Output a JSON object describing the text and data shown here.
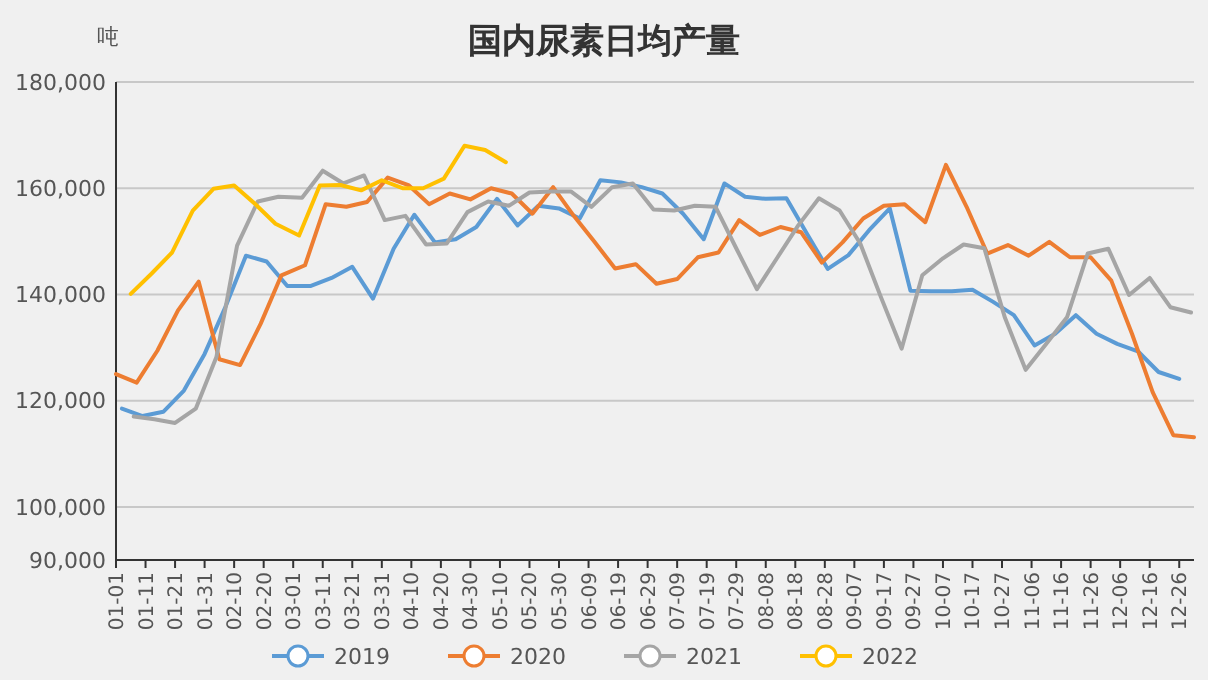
{
  "chart_data": {
    "type": "line",
    "title": "国内尿素日均产量",
    "ylabel": "吨",
    "ylim": [
      90000,
      180000
    ],
    "yticks": [
      {
        "value": 90000,
        "label": "90,000"
      },
      {
        "value": 100000,
        "label": "100,000"
      },
      {
        "value": 120000,
        "label": "120,000"
      },
      {
        "value": 140000,
        "label": "140,000"
      },
      {
        "value": 160000,
        "label": "160,000"
      },
      {
        "value": 180000,
        "label": "180,000"
      }
    ],
    "grid": "y",
    "legend": "bottom",
    "xlim": [
      "--01-01",
      "--12-31"
    ],
    "xticks": [
      {
        "value": "--01-01",
        "label": "01-01"
      },
      {
        "value": "--01-11",
        "label": "01-11"
      },
      {
        "value": "--01-21",
        "label": "01-21"
      },
      {
        "value": "--01-31",
        "label": "01-31"
      },
      {
        "value": "--02-10",
        "label": "02-10"
      },
      {
        "value": "--02-20",
        "label": "02-20"
      },
      {
        "value": "--03-01",
        "label": "03-01"
      },
      {
        "value": "--03-11",
        "label": "03-11"
      },
      {
        "value": "--03-21",
        "label": "03-21"
      },
      {
        "value": "--03-31",
        "label": "03-31"
      },
      {
        "value": "--04-10",
        "label": "04-10"
      },
      {
        "value": "--04-20",
        "label": "04-20"
      },
      {
        "value": "--04-30",
        "label": "04-30"
      },
      {
        "value": "--05-10",
        "label": "05-10"
      },
      {
        "value": "--05-20",
        "label": "05-20"
      },
      {
        "value": "--05-30",
        "label": "05-30"
      },
      {
        "value": "--06-09",
        "label": "06-09"
      },
      {
        "value": "--06-19",
        "label": "06-19"
      },
      {
        "value": "--06-29",
        "label": "06-29"
      },
      {
        "value": "--07-09",
        "label": "07-09"
      },
      {
        "value": "--07-19",
        "label": "07-19"
      },
      {
        "value": "--07-29",
        "label": "07-29"
      },
      {
        "value": "--08-08",
        "label": "08-08"
      },
      {
        "value": "--08-18",
        "label": "08-18"
      },
      {
        "value": "--08-28",
        "label": "08-28"
      },
      {
        "value": "--09-07",
        "label": "09-07"
      },
      {
        "value": "--09-17",
        "label": "09-17"
      },
      {
        "value": "--09-27",
        "label": "09-27"
      },
      {
        "value": "--10-07",
        "label": "10-07"
      },
      {
        "value": "--10-17",
        "label": "10-17"
      },
      {
        "value": "--10-27",
        "label": "10-27"
      },
      {
        "value": "--11-06",
        "label": "11-06"
      },
      {
        "value": "--11-16",
        "label": "11-16"
      },
      {
        "value": "--11-26",
        "label": "11-26"
      },
      {
        "value": "--12-06",
        "label": "12-06"
      },
      {
        "value": "--12-16",
        "label": "12-16"
      },
      {
        "value": "--12-26",
        "label": "12-26"
      }
    ],
    "series": [
      {
        "name": "2019",
        "color": "#5b9bd5",
        "x": [
          "--01-03",
          "--01-10",
          "--01-17",
          "--01-24",
          "--01-31",
          "--02-07",
          "--02-14",
          "--02-21",
          "--02-28",
          "--03-07",
          "--03-14",
          "--03-21",
          "--03-28",
          "--04-04",
          "--04-11",
          "--04-18",
          "--04-25",
          "--05-02",
          "--05-09",
          "--05-16",
          "--05-23",
          "--05-30",
          "--06-06",
          "--06-13",
          "--06-20",
          "--06-27",
          "--07-04",
          "--07-11",
          "--07-18",
          "--07-25",
          "--08-01",
          "--08-08",
          "--08-15",
          "--08-22",
          "--08-29",
          "--09-05",
          "--09-12",
          "--09-19",
          "--09-26",
          "--10-03",
          "--10-10",
          "--10-17",
          "--10-24",
          "--10-31",
          "--11-07",
          "--11-14",
          "--11-21",
          "--11-28",
          "--12-05",
          "--12-12",
          "--12-19",
          "--12-26"
        ],
        "values": [
          118500,
          117100,
          117900,
          121900,
          128800,
          137600,
          147300,
          146200,
          141600,
          141600,
          143100,
          145200,
          139200,
          148600,
          155000,
          149800,
          150400,
          152700,
          158000,
          153000,
          156700,
          156200,
          154300,
          161500,
          161100,
          160200,
          159000,
          155200,
          150400,
          160900,
          158400,
          158000,
          158100,
          151400,
          144800,
          147400,
          152100,
          156200,
          140700,
          140600,
          140600,
          140900,
          138600,
          136100,
          130400,
          132600,
          136100,
          132600,
          130700,
          129300,
          125400,
          124100
        ]
      },
      {
        "name": "2020",
        "color": "#ed7d31",
        "x": [
          "--01-01",
          "--01-08",
          "--01-15",
          "--01-22",
          "--01-29",
          "--02-05",
          "--02-12",
          "--02-19",
          "--02-26",
          "--03-05",
          "--03-12",
          "--03-19",
          "--03-26",
          "--04-02",
          "--04-09",
          "--04-16",
          "--04-23",
          "--04-30",
          "--05-07",
          "--05-14",
          "--05-21",
          "--05-28",
          "--06-04",
          "--06-11",
          "--06-18",
          "--06-25",
          "--07-02",
          "--07-09",
          "--07-16",
          "--07-23",
          "--07-30",
          "--08-06",
          "--08-13",
          "--08-20",
          "--08-27",
          "--09-03",
          "--09-10",
          "--09-17",
          "--09-24",
          "--10-01",
          "--10-08",
          "--10-15",
          "--10-22",
          "--10-29",
          "--11-05",
          "--11-12",
          "--11-19",
          "--11-26",
          "--12-03",
          "--12-10",
          "--12-17",
          "--12-24",
          "--12-31"
        ],
        "values": [
          125000,
          123400,
          129400,
          137000,
          142400,
          127800,
          126700,
          134500,
          143600,
          145500,
          157000,
          156500,
          157400,
          162000,
          160600,
          157000,
          159000,
          157900,
          160000,
          159000,
          155200,
          160200,
          154800,
          149900,
          144900,
          145700,
          142000,
          142900,
          147000,
          147900,
          154000,
          151200,
          152700,
          151700,
          146000,
          149800,
          154300,
          156700,
          157000,
          153600,
          164400,
          156500,
          147700,
          149300,
          147300,
          149900,
          147000,
          147000,
          142600,
          132600,
          121600,
          113500,
          113100
        ]
      },
      {
        "name": "2021",
        "color": "#a5a5a5",
        "x": [
          "--01-07",
          "--01-14",
          "--01-21",
          "--01-28",
          "--02-04",
          "--02-11",
          "--02-18",
          "--02-25",
          "--03-04",
          "--03-11",
          "--03-18",
          "--03-25",
          "--04-01",
          "--04-08",
          "--04-15",
          "--04-22",
          "--04-29",
          "--05-06",
          "--05-13",
          "--05-20",
          "--05-27",
          "--06-03",
          "--06-10",
          "--06-17",
          "--06-24",
          "--07-01",
          "--07-08",
          "--07-15",
          "--07-22",
          "--07-29",
          "--08-05",
          "--08-12",
          "--08-19",
          "--08-26",
          "--09-02",
          "--09-09",
          "--09-16",
          "--09-23",
          "--09-30",
          "--10-07",
          "--10-14",
          "--10-21",
          "--10-28",
          "--11-04",
          "--11-11",
          "--11-18",
          "--11-25",
          "--12-02",
          "--12-09",
          "--12-16",
          "--12-23",
          "--12-30"
        ],
        "values": [
          117000,
          116500,
          115800,
          118500,
          128200,
          149200,
          157500,
          158400,
          158200,
          163300,
          160900,
          162400,
          154000,
          154800,
          149400,
          149600,
          155500,
          157500,
          156700,
          159200,
          159400,
          159400,
          156500,
          160200,
          160900,
          156000,
          155800,
          156700,
          156500,
          148700,
          141000,
          147000,
          153000,
          158100,
          155800,
          149600,
          139500,
          129800,
          143600,
          146800,
          149400,
          148700,
          135600,
          125800,
          130700,
          135700,
          147700,
          148600,
          139900,
          143100,
          137600,
          136600
        ]
      },
      {
        "name": "2022",
        "color": "#ffc000",
        "x": [
          "--01-06",
          "--01-13",
          "--01-20",
          "--01-27",
          "--02-03",
          "--02-10",
          "--02-17",
          "--02-24",
          "--03-03",
          "--03-10",
          "--03-17",
          "--03-24",
          "--03-31",
          "--04-07",
          "--04-14",
          "--04-21",
          "--04-28",
          "--05-05",
          "--05-12"
        ],
        "values": [
          140100,
          143900,
          147900,
          155800,
          159900,
          160500,
          157100,
          153300,
          151100,
          160500,
          160600,
          159600,
          161500,
          160000,
          160000,
          161800,
          168000,
          167200,
          164900
        ]
      }
    ]
  }
}
